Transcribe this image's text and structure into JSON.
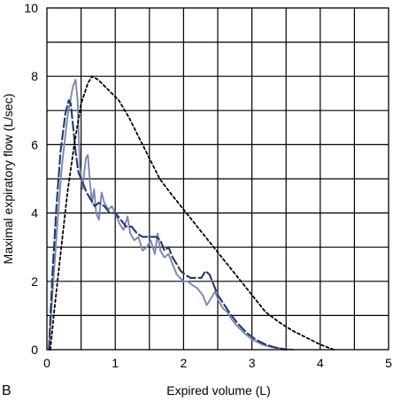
{
  "chart_data": {
    "type": "line",
    "panel_label": "B",
    "xlabel": "Expired volume (L)",
    "ylabel": "Maximal expiratory flow (L/sec)",
    "xlim": [
      0,
      5
    ],
    "ylim": [
      0,
      10
    ],
    "x_ticks": [
      "0",
      "1",
      "2",
      "3",
      "4",
      "5"
    ],
    "y_ticks": [
      "0",
      "2",
      "4",
      "6",
      "8",
      "10"
    ],
    "grid": true,
    "grid_x_step": 0.5,
    "grid_y_step": 1,
    "legend": "none",
    "series": [
      {
        "style": "solid",
        "color": "#7a86b8",
        "points": [
          [
            0.03,
            0
          ],
          [
            0.08,
            1.6
          ],
          [
            0.15,
            3.6
          ],
          [
            0.22,
            5.4
          ],
          [
            0.3,
            6.8
          ],
          [
            0.38,
            7.7
          ],
          [
            0.42,
            7.9
          ],
          [
            0.45,
            7.3
          ],
          [
            0.48,
            5.4
          ],
          [
            0.52,
            4.7
          ],
          [
            0.57,
            5.6
          ],
          [
            0.6,
            5.7
          ],
          [
            0.63,
            4.9
          ],
          [
            0.66,
            4.3
          ],
          [
            0.69,
            4.7
          ],
          [
            0.72,
            4.0
          ],
          [
            0.76,
            3.8
          ],
          [
            0.8,
            4.6
          ],
          [
            0.84,
            4.3
          ],
          [
            0.9,
            4.1
          ],
          [
            0.95,
            4.2
          ],
          [
            1.0,
            4.0
          ],
          [
            1.06,
            3.7
          ],
          [
            1.12,
            3.5
          ],
          [
            1.18,
            3.9
          ],
          [
            1.22,
            3.4
          ],
          [
            1.28,
            3.2
          ],
          [
            1.34,
            3.3
          ],
          [
            1.4,
            2.9
          ],
          [
            1.46,
            3.0
          ],
          [
            1.52,
            3.2
          ],
          [
            1.58,
            2.8
          ],
          [
            1.62,
            3.4
          ],
          [
            1.66,
            2.9
          ],
          [
            1.72,
            2.7
          ],
          [
            1.78,
            2.8
          ],
          [
            1.84,
            2.5
          ],
          [
            1.9,
            2.2
          ],
          [
            1.95,
            2.1
          ],
          [
            2.0,
            2.0
          ],
          [
            2.06,
            2.0
          ],
          [
            2.12,
            1.9
          ],
          [
            2.2,
            1.8
          ],
          [
            2.28,
            1.6
          ],
          [
            2.34,
            1.3
          ],
          [
            2.4,
            1.5
          ],
          [
            2.46,
            1.7
          ],
          [
            2.52,
            1.4
          ],
          [
            2.58,
            1.2
          ],
          [
            2.64,
            1.1
          ],
          [
            2.7,
            0.9
          ],
          [
            2.78,
            0.7
          ],
          [
            2.88,
            0.5
          ],
          [
            3.0,
            0.3
          ],
          [
            3.15,
            0.15
          ],
          [
            3.3,
            0.07
          ],
          [
            3.45,
            0.03
          ],
          [
            3.6,
            0.0
          ]
        ]
      },
      {
        "style": "dashed",
        "color": "#1f3a6e",
        "points": [
          [
            0.03,
            0
          ],
          [
            0.08,
            2.2
          ],
          [
            0.14,
            4.2
          ],
          [
            0.2,
            5.8
          ],
          [
            0.27,
            6.9
          ],
          [
            0.32,
            7.3
          ],
          [
            0.35,
            7.2
          ],
          [
            0.38,
            6.6
          ],
          [
            0.42,
            5.8
          ],
          [
            0.46,
            5.2
          ],
          [
            0.52,
            4.9
          ],
          [
            0.58,
            4.6
          ],
          [
            0.64,
            4.4
          ],
          [
            0.7,
            4.2
          ],
          [
            0.76,
            4.3
          ],
          [
            0.84,
            4.2
          ],
          [
            0.92,
            4.0
          ],
          [
            1.0,
            4.0
          ],
          [
            1.08,
            3.8
          ],
          [
            1.16,
            3.6
          ],
          [
            1.24,
            3.6
          ],
          [
            1.32,
            3.4
          ],
          [
            1.4,
            3.3
          ],
          [
            1.5,
            3.3
          ],
          [
            1.6,
            3.3
          ],
          [
            1.66,
            3.2
          ],
          [
            1.72,
            2.9
          ],
          [
            1.78,
            3.0
          ],
          [
            1.84,
            2.7
          ],
          [
            1.9,
            2.5
          ],
          [
            1.96,
            2.3
          ],
          [
            2.02,
            2.2
          ],
          [
            2.1,
            2.1
          ],
          [
            2.18,
            2.1
          ],
          [
            2.26,
            2.1
          ],
          [
            2.32,
            2.3
          ],
          [
            2.38,
            2.2
          ],
          [
            2.44,
            1.9
          ],
          [
            2.5,
            1.6
          ],
          [
            2.6,
            1.3
          ],
          [
            2.7,
            1.0
          ],
          [
            2.8,
            0.75
          ],
          [
            2.92,
            0.5
          ],
          [
            3.05,
            0.3
          ],
          [
            3.2,
            0.15
          ],
          [
            3.35,
            0.06
          ],
          [
            3.5,
            0.0
          ]
        ]
      },
      {
        "style": "dotted",
        "color": "#000000",
        "points": [
          [
            0.05,
            0
          ],
          [
            0.1,
            1.0
          ],
          [
            0.2,
            2.8
          ],
          [
            0.3,
            4.6
          ],
          [
            0.4,
            6.0
          ],
          [
            0.5,
            7.2
          ],
          [
            0.6,
            7.8
          ],
          [
            0.66,
            8.0
          ],
          [
            0.75,
            7.9
          ],
          [
            0.9,
            7.6
          ],
          [
            1.05,
            7.3
          ],
          [
            1.2,
            6.8
          ],
          [
            1.35,
            6.2
          ],
          [
            1.5,
            5.6
          ],
          [
            1.65,
            5.0
          ],
          [
            1.8,
            4.6
          ],
          [
            2.0,
            4.1
          ],
          [
            2.2,
            3.6
          ],
          [
            2.4,
            3.1
          ],
          [
            2.6,
            2.6
          ],
          [
            2.8,
            2.1
          ],
          [
            3.0,
            1.6
          ],
          [
            3.2,
            1.1
          ],
          [
            3.4,
            0.8
          ],
          [
            3.6,
            0.55
          ],
          [
            3.8,
            0.35
          ],
          [
            4.0,
            0.15
          ],
          [
            4.2,
            0.0
          ]
        ]
      }
    ]
  }
}
